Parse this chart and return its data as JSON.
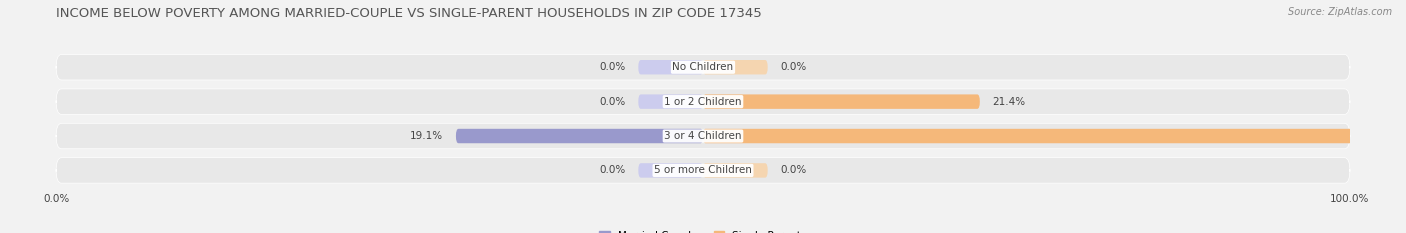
{
  "title": "INCOME BELOW POVERTY AMONG MARRIED-COUPLE VS SINGLE-PARENT HOUSEHOLDS IN ZIP CODE 17345",
  "source": "Source: ZipAtlas.com",
  "categories": [
    "No Children",
    "1 or 2 Children",
    "3 or 4 Children",
    "5 or more Children"
  ],
  "married_values": [
    0.0,
    0.0,
    19.1,
    0.0
  ],
  "single_values": [
    0.0,
    21.4,
    100.0,
    0.0
  ],
  "married_color": "#9999cc",
  "single_color": "#f5b87a",
  "married_color_light": "#ccccee",
  "single_color_light": "#f5d5b0",
  "title_color": "#555555",
  "source_color": "#888888",
  "label_color": "#444444",
  "background_color": "#f2f2f2",
  "row_bg_color": "#e8e8e8",
  "title_fontsize": 9.5,
  "label_fontsize": 7.5,
  "cat_fontsize": 7.5,
  "axis_fontsize": 7.5
}
